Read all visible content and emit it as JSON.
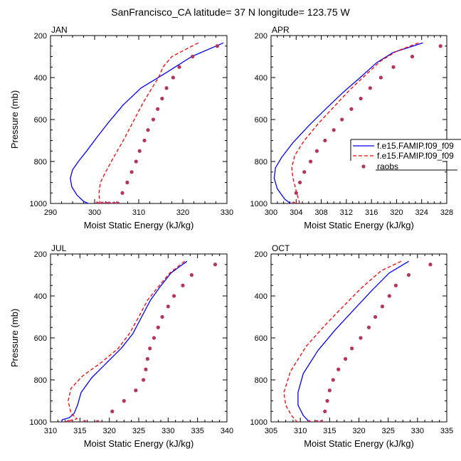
{
  "title": "SanFrancisco_CA  latitude= 37 N longitude= 123.75 W",
  "legend": {
    "entries": [
      {
        "label": "f.e15.FAMIP.f09_f09",
        "color": "#0000ff",
        "dash": "solid",
        "kind": "line"
      },
      {
        "label": "f.e15.FAMIP.f09_f09",
        "color": "#ff0000",
        "dash": "dashed",
        "kind": "line"
      },
      {
        "label": "raobs",
        "color": "#b5345e",
        "kind": "marker"
      }
    ]
  },
  "chart_data": [
    {
      "type": "line",
      "panel_label": "JAN",
      "xlabel": "Moist Static Energy (kJ/kg)",
      "ylabel": "Pressure (mb)",
      "xlim": [
        290,
        330
      ],
      "xticks": [
        290,
        300,
        310,
        320,
        330
      ],
      "xtick_labels": [
        "290",
        "300",
        "310",
        "320",
        "330"
      ],
      "ylim": [
        1000,
        200
      ],
      "yticks": [
        200,
        400,
        600,
        800,
        1000
      ],
      "ytick_labels": [
        "200",
        "400",
        "600",
        "800",
        "1000"
      ],
      "series": [
        {
          "name": "f.e15.FAMIP.f09_f09",
          "color": "#0000ff",
          "dash": "solid",
          "x": [
            329.2,
            322,
            316,
            310.5,
            306.5,
            303.3,
            300.7,
            298.2,
            296.3,
            295,
            294.5,
            294.8,
            296,
            297.5,
            299.5
          ],
          "y": [
            235,
            300,
            380,
            450,
            530,
            610,
            680,
            750,
            800,
            840,
            880,
            920,
            960,
            990,
            1008
          ]
        },
        {
          "name": "f.e15.FAMIP.f09_f09",
          "color": "#ff0000",
          "dash": "dashed",
          "x": [
            323.5,
            317.5,
            315.5,
            314.5,
            313,
            311,
            309,
            306.5,
            304.3,
            302.5,
            301.3,
            301,
            301.2
          ],
          "y": [
            235,
            300,
            350,
            400,
            450,
            520,
            600,
            700,
            780,
            850,
            900,
            950,
            1005
          ]
        },
        {
          "name": "raobs",
          "color": "#b5345e",
          "marker": "dot",
          "x": [
            327.8,
            322.2,
            319.2,
            317.8,
            316.3,
            315.3,
            314.3,
            313.3,
            312.1,
            311.3,
            310.2,
            309.4,
            308.4,
            307.4,
            306.3,
            305.3,
            304.4,
            303.3,
            302.6,
            301.7,
            300.6
          ],
          "y": [
            250,
            300,
            350,
            400,
            450,
            500,
            550,
            600,
            650,
            700,
            750,
            800,
            850,
            900,
            950,
            1000,
            1000,
            1000,
            1000,
            1000,
            1000
          ]
        }
      ]
    },
    {
      "type": "line",
      "panel_label": "APR",
      "xlabel": "Moist Static Energy (kJ/kg)",
      "ylabel": "",
      "xlim": [
        300,
        328
      ],
      "xticks": [
        300,
        304,
        308,
        312,
        316,
        320,
        324,
        328
      ],
      "xtick_labels": [
        "300",
        "304",
        "308",
        "312",
        "316",
        "320",
        "324",
        "328"
      ],
      "ylim": [
        1000,
        200
      ],
      "yticks": [
        200,
        400,
        600,
        800,
        1000
      ],
      "ytick_labels": [
        "200",
        "400",
        "600",
        "800",
        "1000"
      ],
      "series": [
        {
          "name": "f.e15.FAMIP.f09_f09",
          "color": "#0000ff",
          "dash": "solid",
          "x": [
            324.2,
            319.5,
            316.8,
            314.2,
            311.5,
            308.7,
            306,
            303.5,
            301.7,
            300.7,
            300.5,
            301,
            302.2,
            303.5
          ],
          "y": [
            235,
            280,
            330,
            400,
            470,
            550,
            630,
            710,
            780,
            830,
            880,
            930,
            980,
            1008
          ]
        },
        {
          "name": "f.e15.FAMIP.f09_f09",
          "color": "#ff0000",
          "dash": "dashed",
          "x": [
            323.5,
            320,
            317.5,
            315,
            312.5,
            310,
            307.5,
            305.3,
            303.8,
            303.3,
            303.5,
            304,
            304.6
          ],
          "y": [
            235,
            275,
            320,
            390,
            460,
            540,
            620,
            700,
            770,
            830,
            880,
            940,
            1005
          ]
        },
        {
          "name": "raobs",
          "color": "#b5345e",
          "marker": "dot",
          "x": [
            327,
            322.5,
            319.5,
            317.5,
            315.8,
            314.3,
            312.8,
            311.3,
            310,
            308.6,
            307.3,
            306.3,
            305.3,
            304.6,
            304,
            303.6
          ],
          "y": [
            250,
            300,
            350,
            400,
            450,
            500,
            550,
            600,
            650,
            700,
            750,
            800,
            850,
            900,
            950,
            1000
          ]
        }
      ]
    },
    {
      "type": "line",
      "panel_label": "JUL",
      "xlabel": "Moist Static Energy (kJ/kg)",
      "ylabel": "Pressure (mb)",
      "xlim": [
        310,
        340
      ],
      "xticks": [
        310,
        315,
        320,
        325,
        330,
        335,
        340
      ],
      "xtick_labels": [
        "310",
        "315",
        "320",
        "325",
        "330",
        "335",
        "340"
      ],
      "ylim": [
        1000,
        200
      ],
      "yticks": [
        200,
        400,
        600,
        800,
        1000
      ],
      "ytick_labels": [
        "200",
        "400",
        "600",
        "800",
        "1000"
      ],
      "series": [
        {
          "name": "f.e15.FAMIP.f09_f09",
          "color": "#0000ff",
          "dash": "solid",
          "x": [
            333.2,
            330.5,
            328.8,
            327,
            325.5,
            324,
            322,
            319.5,
            317,
            315.2,
            314.6,
            314,
            313.2,
            312,
            311.8
          ],
          "y": [
            235,
            290,
            350,
            420,
            500,
            580,
            650,
            720,
            790,
            860,
            920,
            960,
            980,
            990,
            1005
          ]
        },
        {
          "name": "f.e15.FAMIP.f09_f09",
          "color": "#ff0000",
          "dash": "dashed",
          "x": [
            332.8,
            330.3,
            328.5,
            326.5,
            325,
            323.4,
            321.5,
            318.5,
            315.5,
            313.5,
            313,
            313.5,
            314.5,
            312.5
          ],
          "y": [
            235,
            290,
            350,
            420,
            500,
            580,
            650,
            720,
            780,
            840,
            900,
            960,
            985,
            1000
          ]
        },
        {
          "name": "raobs",
          "color": "#b5345e",
          "marker": "dot",
          "x": [
            338,
            334,
            332.5,
            331,
            330,
            329,
            328.3,
            327.6,
            326.9,
            326.5,
            326.2,
            325.8,
            324.5,
            322.5,
            320.5,
            318,
            315.8,
            313
          ],
          "y": [
            250,
            300,
            350,
            400,
            450,
            500,
            550,
            600,
            650,
            700,
            750,
            800,
            850,
            900,
            950,
            1000,
            1000,
            1000
          ]
        }
      ]
    },
    {
      "type": "line",
      "panel_label": "OCT",
      "xlabel": "Moist Static Energy (kJ/kg)",
      "ylabel": "",
      "xlim": [
        305,
        335
      ],
      "xticks": [
        305,
        310,
        315,
        320,
        325,
        330,
        335
      ],
      "xtick_labels": [
        "305",
        "310",
        "315",
        "320",
        "325",
        "330",
        "335"
      ],
      "ylim": [
        1000,
        200
      ],
      "yticks": [
        200,
        400,
        600,
        800,
        1000
      ],
      "ytick_labels": [
        "200",
        "400",
        "600",
        "800",
        "1000"
      ],
      "series": [
        {
          "name": "f.e15.FAMIP.f09_f09",
          "color": "#0000ff",
          "dash": "solid",
          "x": [
            328.5,
            325.2,
            322,
            319,
            316,
            313,
            310.5,
            309.6,
            309.6,
            310.5,
            311.8
          ],
          "y": [
            235,
            290,
            380,
            470,
            560,
            660,
            770,
            860,
            920,
            970,
            1008
          ]
        },
        {
          "name": "f.e15.FAMIP.f09_f09",
          "color": "#ff0000",
          "dash": "dashed",
          "x": [
            327.2,
            323.8,
            320.5,
            317.3,
            314.2,
            311,
            308.3,
            307.2,
            307.5,
            308.5,
            309.6
          ],
          "y": [
            235,
            280,
            360,
            450,
            540,
            640,
            760,
            860,
            920,
            970,
            1005
          ]
        },
        {
          "name": "raobs",
          "color": "#b5345e",
          "marker": "dot",
          "x": [
            332.2,
            328.5,
            326.3,
            325.2,
            324,
            322.8,
            321.7,
            320.3,
            318.8,
            317.7,
            316.5,
            315.6,
            315,
            314.6,
            314.2,
            313.6,
            312.8,
            311.5
          ],
          "y": [
            250,
            300,
            350,
            400,
            450,
            500,
            550,
            600,
            650,
            700,
            750,
            800,
            850,
            900,
            950,
            1000,
            1000,
            1000
          ]
        }
      ]
    }
  ]
}
